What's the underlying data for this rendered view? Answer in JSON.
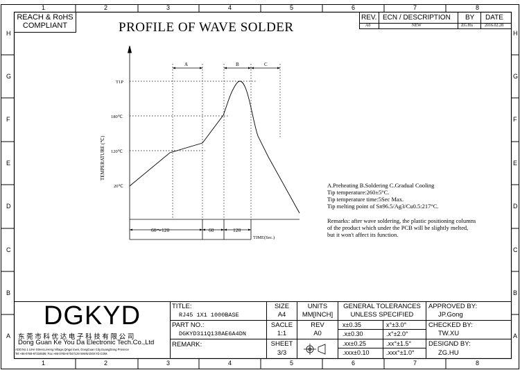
{
  "compliance": {
    "line1": "REACH & RoHS",
    "line2": "COMPLIANT"
  },
  "title": "PROFILE OF WAVE SOLDER",
  "zones": {
    "cols_top": [
      "1",
      "2",
      "3",
      "4",
      "5",
      "6",
      "7",
      "8"
    ],
    "cols_bottom": [
      "1",
      "2",
      "3",
      "4",
      "5",
      "6",
      "7",
      "8"
    ],
    "rows_left": [
      "H",
      "G",
      "F",
      "E",
      "D",
      "C",
      "B",
      "A"
    ],
    "rows_right": [
      "H",
      "G",
      "F",
      "E",
      "D",
      "C",
      "B",
      "A"
    ]
  },
  "revision_table": {
    "headers": {
      "rev": "REV.",
      "ecn": "ECN / DESCRIPTION",
      "by": "BY",
      "date": "DATE"
    },
    "row": {
      "rev": "A0",
      "ecn": "NEW",
      "by": "ZG.Hu",
      "date": "2016.02.28"
    }
  },
  "chart_data": {
    "type": "line",
    "title": "",
    "ylabel": "TEMPERATURE (℃)",
    "xlabel": "TIME(Sec.)",
    "y_ticks": [
      "20℃",
      "120℃",
      "180℃",
      "T1P"
    ],
    "phase_labels": [
      "A",
      "B",
      "C"
    ],
    "duration_labels": [
      "60～120",
      "60",
      "120"
    ]
  },
  "remarks": {
    "lines": [
      "A.Preheating  B.Soldering  C.Gradual Cooling",
      "Tip temperature:260±5°C.",
      "Tip temperature time:5Sec Max.",
      "Tip melting point of Sn96.5/Ag3/Cu0.5:217°C."
    ],
    "note": [
      "Remarks: after wave soldering, the plastic positioning columns",
      "of the product  which under the PCB will be slightly melted,",
      "but it won't affect its function."
    ]
  },
  "company": {
    "logo": "DGKYD",
    "name_cn": "东 莞 市 科 优 达 电 子 科 技 有 限 公 司",
    "name_en": "Dong Guan Ke You Da Electronic Tech.Co.,Ltd",
    "address": "ADD:No.1 LiHe Street,LiHeng Village,Qingxi town, DongGuan City,GuangDong Province",
    "contact": "Tel:+86-0769-87334608; Fax:+86-0769-87047129  WWW.DGKYD.COM"
  },
  "title_block": {
    "title_label": "TITLE:",
    "title_value": "RJ45 1X1 1000BASE",
    "part_label": "PART NO.:",
    "part_value": "DGKYD311Q138AE6A4DN",
    "remark_label": "REMARK:",
    "size_label": "SIZE",
    "size_value": "A4",
    "units_label": "UNITS",
    "units_value": "MM[INCH]",
    "scale_label": "SACLE",
    "scale_value": "1:1",
    "rev_label": "REV",
    "rev_value": "A0",
    "sheet_label": "SHEET",
    "sheet_value": "3/3",
    "tol_title1": "GENERAL TOLERANCES",
    "tol_title2": "UNLESS SPECIFIED",
    "tol_rows": [
      {
        "lin": "x±0.35",
        "ang": "x°±3.0°"
      },
      {
        "lin": ".x±0.30",
        "ang": ".x°±2.0°"
      },
      {
        "lin": ".xx±0.25",
        "ang": ".xx°±1.5°"
      },
      {
        "lin": ".xxx±0.10",
        "ang": ".xxx°±1.0°"
      }
    ],
    "approved_label": "APPROVED BY:",
    "approved_value": "JP.Gong",
    "checked_label": "CHECKED BY:",
    "checked_value": "TW.XU",
    "designed_label": "DESIGND BY:",
    "designed_value": "ZG.HU"
  }
}
